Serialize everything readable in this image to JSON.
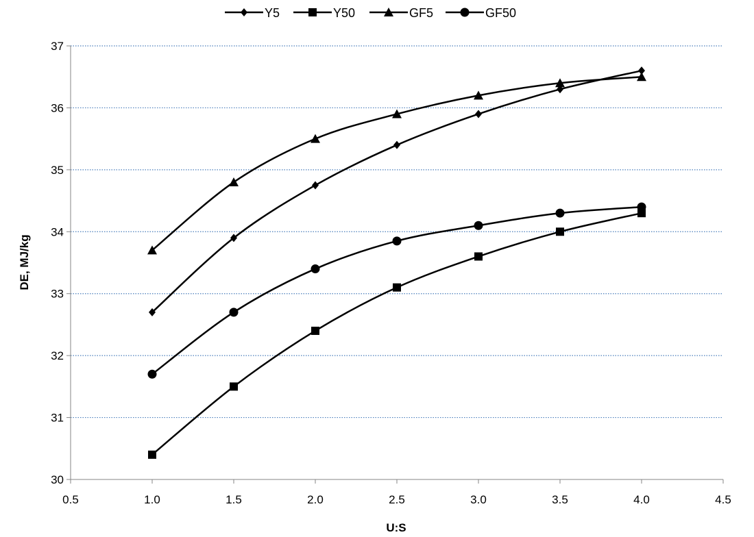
{
  "chart_data": {
    "type": "line",
    "title": "",
    "xlabel": "U:S",
    "ylabel": "DE, MJ/kg",
    "xlim": [
      0.5,
      4.5
    ],
    "ylim": [
      30,
      37
    ],
    "x_ticks": [
      "0.5",
      "1.0",
      "1.5",
      "2.0",
      "2.5",
      "3.0",
      "3.5",
      "4.0",
      "4.5"
    ],
    "y_ticks": [
      "30",
      "31",
      "32",
      "33",
      "34",
      "35",
      "36",
      "37"
    ],
    "grid": "horizontal-dotted",
    "legend_position": "top",
    "x": [
      1.0,
      1.5,
      2.0,
      2.5,
      3.0,
      3.5,
      4.0
    ],
    "series": [
      {
        "name": "Y5",
        "marker": "diamond",
        "values": [
          32.7,
          33.9,
          34.75,
          35.4,
          35.9,
          36.3,
          36.6
        ]
      },
      {
        "name": "Y50",
        "marker": "square",
        "values": [
          30.4,
          31.5,
          32.4,
          33.1,
          33.6,
          34.0,
          34.3
        ]
      },
      {
        "name": "GF5",
        "marker": "triangle",
        "values": [
          33.7,
          34.8,
          35.5,
          35.9,
          36.2,
          36.4,
          36.5
        ]
      },
      {
        "name": "GF50",
        "marker": "circle",
        "values": [
          31.7,
          32.7,
          33.4,
          33.85,
          34.1,
          34.3,
          34.4
        ]
      }
    ],
    "colors": {
      "line": "#000000",
      "grid": "#4a7ebb",
      "axis": "#868686"
    }
  }
}
